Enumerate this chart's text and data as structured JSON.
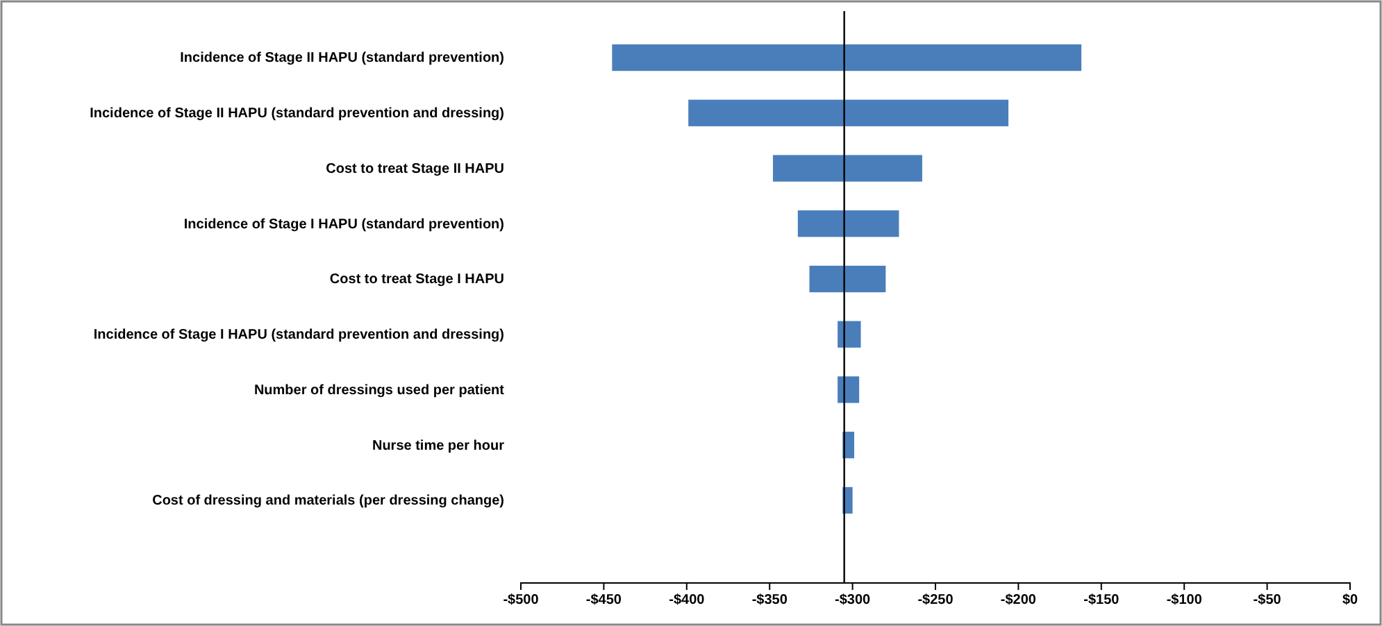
{
  "chart_data": {
    "type": "bar",
    "orientation": "horizontal",
    "categories": [
      "Incidence of Stage II HAPU (standard prevention)",
      "Incidence of Stage II HAPU (standard prevention and dressing)",
      "Cost to treat Stage II HAPU",
      "Incidence of Stage I HAPU (standard prevention)",
      "Cost to treat Stage I HAPU",
      "Incidence of Stage I HAPU (standard prevention and dressing)",
      "Number of dressings used per patient",
      "Nurse time per hour",
      "Cost of dressing and materials (per dressing change)"
    ],
    "base": [
      -445,
      -399,
      -348,
      -333,
      -326,
      -309,
      -309,
      -306,
      -306
    ],
    "values": [
      283,
      193,
      90,
      61,
      46,
      14,
      13,
      7,
      6
    ],
    "color": "#4a7ebb",
    "xlim": [
      -500,
      0
    ],
    "xticks": [
      {
        "value": -500,
        "label": "-$500"
      },
      {
        "value": -450,
        "label": "-$450"
      },
      {
        "value": -400,
        "label": "-$400"
      },
      {
        "value": -350,
        "label": "-$350"
      },
      {
        "value": -300,
        "label": "-$300"
      },
      {
        "value": -250,
        "label": "-$250"
      },
      {
        "value": -200,
        "label": "-$200"
      },
      {
        "value": -150,
        "label": "-$150"
      },
      {
        "value": -100,
        "label": "-$100"
      },
      {
        "value": -50,
        "label": "-$50"
      },
      {
        "value": 0,
        "label": "$0"
      }
    ],
    "ref_lines": [
      {
        "axis": "x",
        "value": -305,
        "color": "#000000"
      }
    ]
  }
}
